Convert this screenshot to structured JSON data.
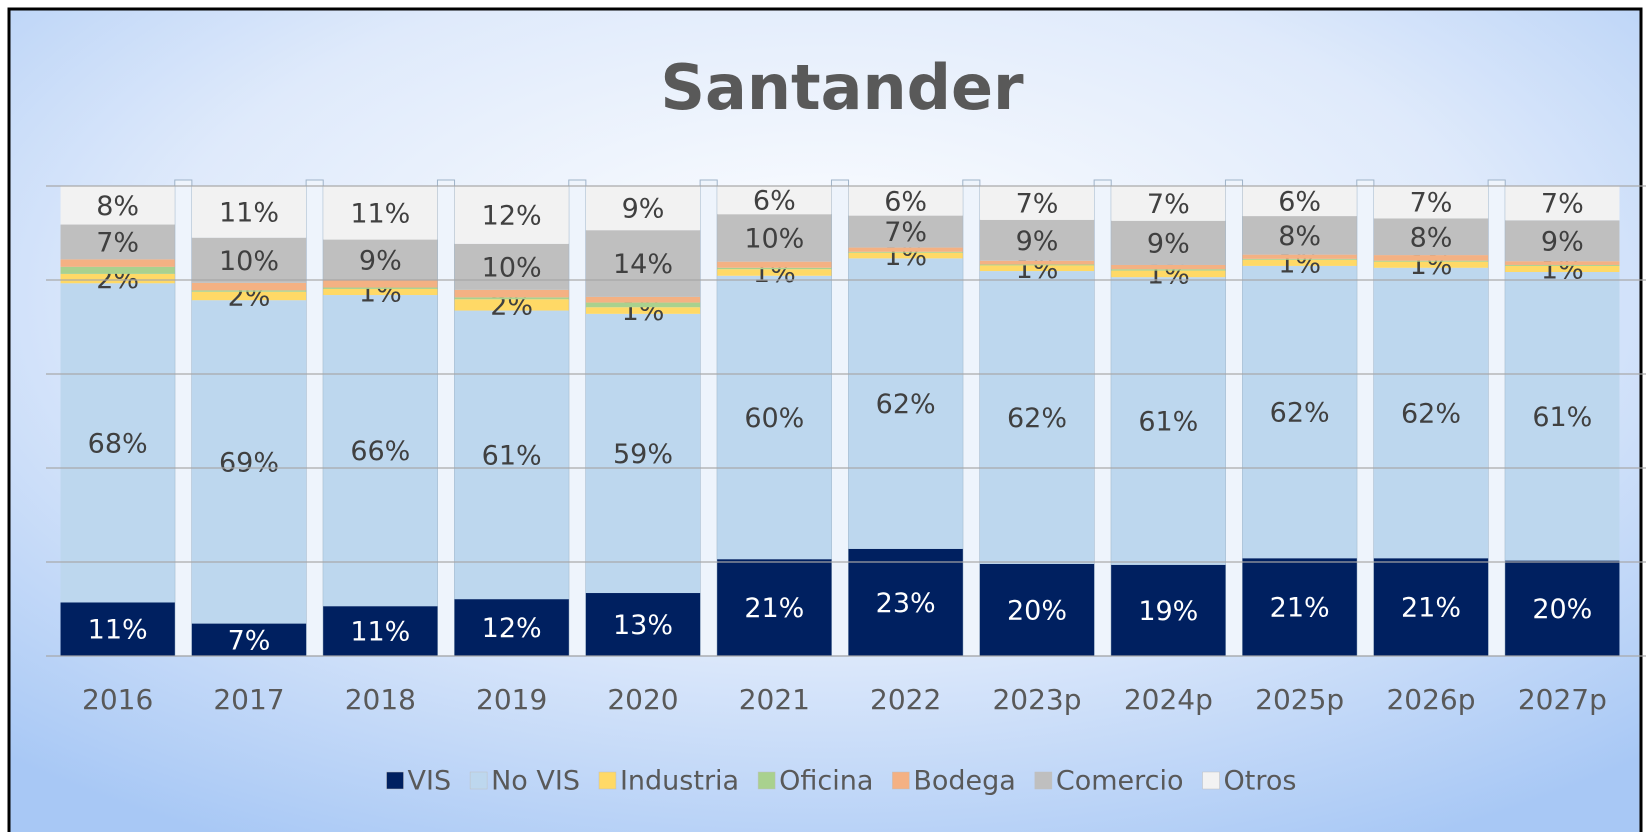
{
  "chart_data": {
    "type": "stacked_bar_100",
    "title": "Santander",
    "categories": [
      "2016",
      "2017",
      "2018",
      "2019",
      "2020",
      "2021",
      "2022",
      "2023p",
      "2024p",
      "2025p",
      "2026p",
      "2027p"
    ],
    "series": [
      {
        "name": "VIS",
        "color": "#002060",
        "values": [
          11.4,
          6.9,
          10.6,
          12.1,
          13.4,
          20.6,
          22.8,
          19.6,
          19.4,
          20.8,
          20.8,
          20.3
        ],
        "value_labels": [
          "11%",
          "7%",
          "11%",
          "12%",
          "13%",
          "21%",
          "23%",
          "20%",
          "19%",
          "21%",
          "21%",
          "20%"
        ]
      },
      {
        "name": "No VIS",
        "color": "#bdd7ee",
        "values": [
          67.9,
          68.8,
          66.2,
          61.4,
          59.4,
          60.3,
          61.8,
          62.3,
          61.2,
          62.2,
          61.8,
          61.4
        ],
        "value_labels": [
          "68%",
          "69%",
          "66%",
          "61%",
          "59%",
          "60%",
          "62%",
          "62%",
          "61%",
          "62%",
          "62%",
          "61%"
        ]
      },
      {
        "name": "Industria",
        "color": "#ffd966",
        "values": [
          2.0,
          1.8,
          1.3,
          2.4,
          1.4,
          1.4,
          1.2,
          1.2,
          1.4,
          1.3,
          1.3,
          1.3
        ],
        "value_labels": [
          "2%",
          "2%",
          "1%",
          "2%",
          "1%",
          "1%",
          "1%",
          "1%",
          "1%",
          "1%",
          "1%",
          "1%"
        ]
      },
      {
        "name": "Oficina",
        "color": "#a9d18e",
        "values": [
          1.5,
          0.3,
          0.3,
          0.4,
          1.0,
          0.3,
          0.2,
          0.2,
          0.3,
          0.2,
          0.2,
          0.2
        ]
      },
      {
        "name": "Bodega",
        "color": "#f4b183",
        "values": [
          1.6,
          1.6,
          1.6,
          1.6,
          1.2,
          1.3,
          0.9,
          0.8,
          0.9,
          0.9,
          1.2,
          0.8
        ]
      },
      {
        "name": "Comercio",
        "color": "#bfbfbf",
        "values": [
          7.4,
          9.6,
          8.6,
          9.8,
          14.2,
          10.1,
          6.8,
          8.7,
          9.4,
          8.2,
          7.8,
          8.7
        ],
        "value_labels": [
          "7%",
          "10%",
          "9%",
          "10%",
          "14%",
          "10%",
          "7%",
          "9%",
          "9%",
          "8%",
          "8%",
          "9%"
        ]
      },
      {
        "name": "Otros",
        "color": "#f2f2f2",
        "values": [
          8.2,
          11.0,
          11.4,
          12.3,
          9.4,
          6.0,
          6.3,
          7.2,
          7.4,
          6.4,
          6.9,
          7.3
        ],
        "value_labels": [
          "8%",
          "11%",
          "11%",
          "12%",
          "9%",
          "6%",
          "6%",
          "7%",
          "7%",
          "6%",
          "7%",
          "7%"
        ]
      }
    ],
    "ylim": [
      0,
      100
    ],
    "yticks": [
      0,
      20,
      40,
      60,
      80,
      100
    ],
    "grid": true
  }
}
